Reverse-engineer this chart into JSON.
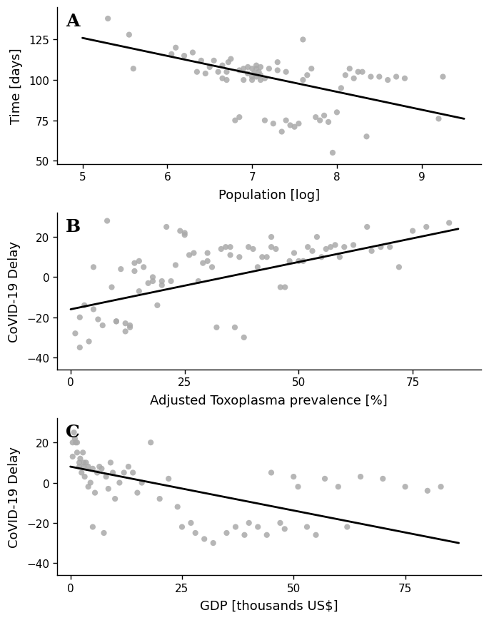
{
  "panel_A": {
    "label": "A",
    "xlabel": "Population [log]",
    "ylabel": "Time [days]",
    "xlim": [
      4.7,
      9.7
    ],
    "ylim": [
      48,
      145
    ],
    "xticks": [
      5,
      6,
      7,
      8,
      9
    ],
    "yticks": [
      50,
      75,
      100,
      125
    ],
    "line_x": [
      5.0,
      9.5
    ],
    "line_y": [
      126.0,
      76.0
    ],
    "scatter_x": [
      5.3,
      5.55,
      5.6,
      6.05,
      6.1,
      6.2,
      6.3,
      6.35,
      6.4,
      6.45,
      6.5,
      6.55,
      6.6,
      6.65,
      6.65,
      6.7,
      6.7,
      6.72,
      6.75,
      6.8,
      6.85,
      6.85,
      6.9,
      6.9,
      6.95,
      6.95,
      7.0,
      7.0,
      7.0,
      7.02,
      7.05,
      7.05,
      7.05,
      7.08,
      7.1,
      7.1,
      7.1,
      7.15,
      7.15,
      7.2,
      7.25,
      7.3,
      7.3,
      7.35,
      7.4,
      7.4,
      7.45,
      7.5,
      7.55,
      7.6,
      7.6,
      7.65,
      7.7,
      7.75,
      7.8,
      7.85,
      7.9,
      7.95,
      8.0,
      8.05,
      8.1,
      8.15,
      8.2,
      8.25,
      8.3,
      8.35,
      8.4,
      8.5,
      8.6,
      8.7,
      8.8,
      9.2,
      9.25
    ],
    "scatter_y": [
      138,
      128,
      107,
      116,
      120,
      115,
      117,
      105,
      112,
      104,
      108,
      112,
      105,
      101,
      109,
      100,
      105,
      111,
      113,
      75,
      77,
      106,
      100,
      107,
      104,
      108,
      100,
      102,
      107,
      104,
      107,
      102,
      109,
      105,
      100,
      103,
      108,
      75,
      101,
      107,
      73,
      106,
      111,
      68,
      75,
      105,
      72,
      71,
      73,
      125,
      100,
      103,
      107,
      77,
      75,
      78,
      74,
      55,
      80,
      95,
      103,
      107,
      101,
      105,
      105,
      65,
      102,
      102,
      100,
      102,
      101,
      76,
      102
    ]
  },
  "panel_B": {
    "label": "B",
    "xlabel": "Adjusted Toxoplasma prevalence [%]",
    "ylabel": "CoVID-19 Delay",
    "xlim": [
      -3,
      90
    ],
    "ylim": [
      -46,
      32
    ],
    "xticks": [
      0,
      25,
      50,
      75
    ],
    "yticks": [
      -40,
      -20,
      0,
      20
    ],
    "line_x": [
      0,
      85
    ],
    "line_y": [
      -16,
      24
    ],
    "scatter_x": [
      1,
      2,
      2,
      3,
      4,
      5,
      5,
      6,
      7,
      8,
      9,
      10,
      10,
      11,
      12,
      12,
      13,
      13,
      14,
      14,
      15,
      15,
      16,
      17,
      18,
      18,
      19,
      20,
      20,
      21,
      22,
      23,
      24,
      25,
      25,
      26,
      27,
      28,
      29,
      30,
      30,
      31,
      32,
      33,
      34,
      35,
      35,
      36,
      37,
      38,
      39,
      40,
      41,
      42,
      43,
      44,
      44,
      45,
      46,
      47,
      48,
      49,
      50,
      51,
      52,
      53,
      54,
      55,
      56,
      57,
      58,
      59,
      60,
      62,
      65,
      66,
      68,
      70,
      72,
      75,
      78,
      83
    ],
    "scatter_y": [
      -28,
      -35,
      -20,
      -14,
      -32,
      -16,
      5,
      -21,
      -24,
      28,
      -5,
      -22,
      -22,
      4,
      -23,
      -27,
      -24,
      -25,
      3,
      7,
      -7,
      8,
      5,
      -3,
      -2,
      0,
      -14,
      -4,
      -2,
      25,
      -2,
      6,
      23,
      21,
      22,
      11,
      12,
      -2,
      7,
      8,
      12,
      5,
      -25,
      14,
      15,
      11,
      15,
      -25,
      10,
      -30,
      15,
      14,
      5,
      10,
      10,
      15,
      20,
      14,
      -5,
      -5,
      8,
      12,
      8,
      8,
      15,
      13,
      20,
      10,
      14,
      15,
      16,
      10,
      15,
      16,
      25,
      13,
      15,
      15,
      5,
      23,
      25,
      27
    ]
  },
  "panel_C": {
    "label": "C",
    "xlabel": "GDP [thousands US$]",
    "ylabel": "CoVID-19 Delay",
    "xlim": [
      -3,
      92
    ],
    "ylim": [
      -46,
      32
    ],
    "xticks": [
      0,
      25,
      50,
      75
    ],
    "yticks": [
      -40,
      -20,
      0,
      20
    ],
    "line_x": [
      0,
      87
    ],
    "line_y": [
      8,
      -30
    ],
    "scatter_x": [
      0.5,
      0.5,
      0.8,
      1.0,
      1.2,
      1.5,
      1.5,
      2.0,
      2.0,
      2.2,
      2.5,
      2.8,
      3.0,
      3.0,
      3.2,
      3.5,
      4.0,
      4.0,
      4.5,
      5.0,
      5.0,
      5.5,
      6.0,
      6.5,
      7.0,
      7.5,
      8.0,
      8.5,
      9.0,
      9.5,
      10.0,
      11.0,
      12.0,
      13.0,
      14.0,
      15.0,
      16.0,
      18.0,
      20.0,
      22.0,
      24.0,
      25.0,
      27.0,
      28.0,
      30.0,
      32.0,
      35.0,
      37.0,
      39.0,
      40.0,
      42.0,
      44.0,
      45.0,
      47.0,
      48.0,
      50.0,
      51.0,
      53.0,
      55.0,
      57.0,
      60.0,
      62.0,
      65.0,
      70.0,
      75.0,
      80.0,
      83.0
    ],
    "scatter_y": [
      20,
      13,
      25,
      22,
      20,
      15,
      20,
      10,
      8,
      12,
      5,
      15,
      8,
      10,
      3,
      10,
      -2,
      8,
      0,
      7,
      -22,
      -5,
      5,
      8,
      7,
      -25,
      3,
      -3,
      10,
      5,
      -8,
      0,
      5,
      8,
      5,
      -5,
      0,
      20,
      -8,
      2,
      -12,
      -22,
      -20,
      -25,
      -28,
      -30,
      -25,
      -22,
      -26,
      -20,
      -22,
      -26,
      5,
      -20,
      -23,
      3,
      -2,
      -22,
      -26,
      2,
      -2,
      -22,
      3,
      2,
      -2,
      -4,
      -2
    ]
  },
  "dot_color": "#aaaaaa",
  "dot_alpha": 0.85,
  "dot_size": 35,
  "line_color": "#000000",
  "line_width": 2.0,
  "label_fontsize": 13,
  "tick_fontsize": 11,
  "panel_label_fontsize": 18,
  "background_color": "#ffffff"
}
